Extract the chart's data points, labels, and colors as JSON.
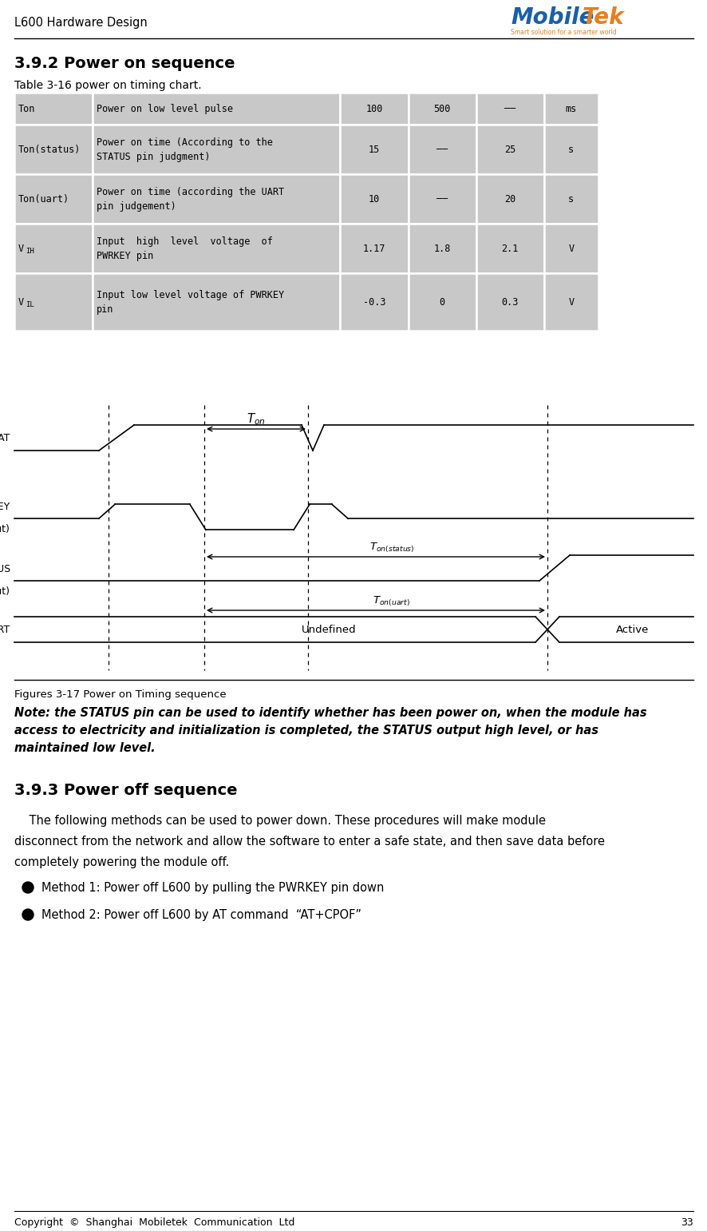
{
  "page_title": "L600 Hardware Design",
  "logo_text_mobile": "Mobile",
  "logo_text_tek": "Tek",
  "logo_subtitle": "Smart solution for a smarter world",
  "section_title": "3.9.2 Power on sequence",
  "table_caption": "Table 3-16 power on timing chart.",
  "table_rows": [
    [
      "Ton",
      "Power on low level pulse",
      "100",
      "500",
      "——",
      "ms"
    ],
    [
      "Ton(status)",
      "Power on time (According to the\nSTATUS pin judgment)",
      "15",
      "——",
      "25",
      "s"
    ],
    [
      "Ton(uart)",
      "Power on time (according the UART\npin judgement)",
      "10",
      "——",
      "20",
      "s"
    ],
    [
      "VIH",
      "Input  high  level  voltage  of\nPWRKEY pin",
      "1.17",
      "1.8",
      "2.1",
      "V"
    ],
    [
      "VIL",
      "Input low level voltage of PWRKEY\npin",
      "-0.3",
      "0",
      "0.3",
      "V"
    ]
  ],
  "row0_param": "Ton",
  "row1_param": "Ton(status)",
  "row2_param": "Ton(uart)",
  "row3_param_main": "V",
  "row3_param_sub": "IH",
  "row4_param_main": "V",
  "row4_param_sub": "IL",
  "fig_caption": "Figures 3-17 Power on Timing sequence",
  "note_text_line1": "Note: the STATUS pin can be used to identify whether has been power on, when the module has",
  "note_text_line2": "access to electricity and initialization is completed, the STATUS output high level, or has",
  "note_text_line3": "maintained low level.",
  "section2_title": "3.9.3 Power off sequence",
  "body_line1": "    The following methods can be used to power down. These procedures will make module",
  "body_line2": "disconnect from the network and allow the software to enter a safe state, and then save data before",
  "body_line3": "completely powering the module off.",
  "bullet1": "Method 1: Power off L600 by pulling the PWRKEY pin down",
  "bullet2": "Method 2: Power off L600 by AT command  “AT+CPOF”",
  "footer_text": "Copyright  ©  Shanghai  Mobiletek  Communication  Ltd",
  "footer_page": "33",
  "table_cell_color": "#c8c8c8",
  "logo_blue": "#1a5fa8",
  "logo_orange": "#e87e1e"
}
